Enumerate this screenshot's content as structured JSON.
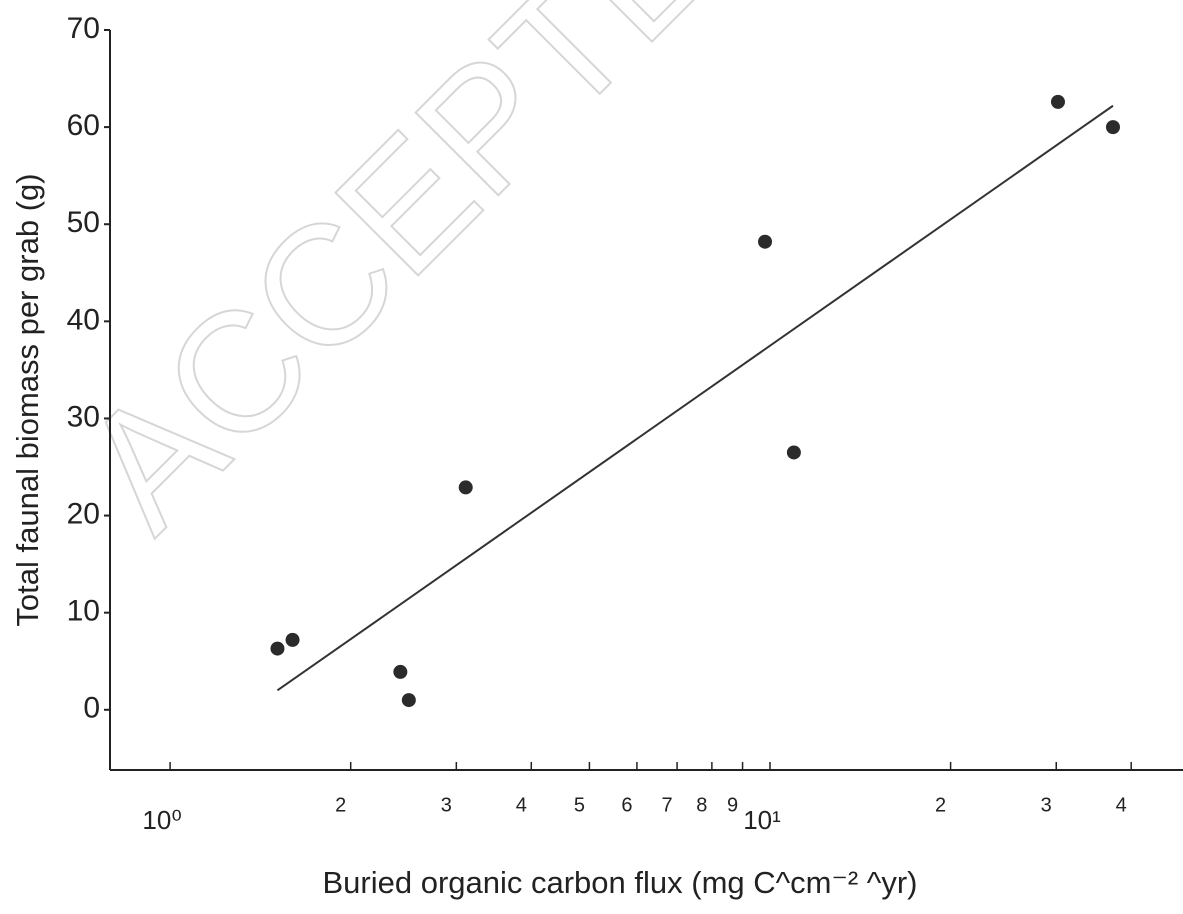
{
  "chart_data": {
    "type": "scatter",
    "watermark": "ACCEPTED",
    "x_label": "Buried organic carbon flux (mg C^cm⁻² ^yr)",
    "y_label": "Total faunal biomass per grab (g)",
    "x_scale": "log",
    "xlim": [
      0.794,
      48.8
    ],
    "ylim": [
      -6.2,
      70
    ],
    "xticks": [
      {
        "value": 1,
        "label": "10⁰"
      },
      2,
      3,
      4,
      5,
      6,
      7,
      8,
      9,
      {
        "value": 10,
        "label": "10¹"
      },
      {
        "value": 20,
        "label": "2"
      },
      {
        "value": 30,
        "label": "3"
      },
      {
        "value": 40,
        "label": "4"
      }
    ],
    "yticks": [
      0,
      10,
      20,
      30,
      40,
      50,
      60,
      70
    ],
    "color": "#2b2b2b",
    "x": [
      1.51,
      1.6,
      2.42,
      2.5,
      3.11,
      9.81,
      10.96,
      30.2,
      37.3
    ],
    "values": [
      6.3,
      7.2,
      3.9,
      1.0,
      22.9,
      48.2,
      26.5,
      62.6,
      60.0
    ],
    "fit_line": {
      "x": [
        1.51,
        37.3
      ],
      "values": [
        2.0,
        62.2
      ],
      "color": "#333333"
    }
  }
}
